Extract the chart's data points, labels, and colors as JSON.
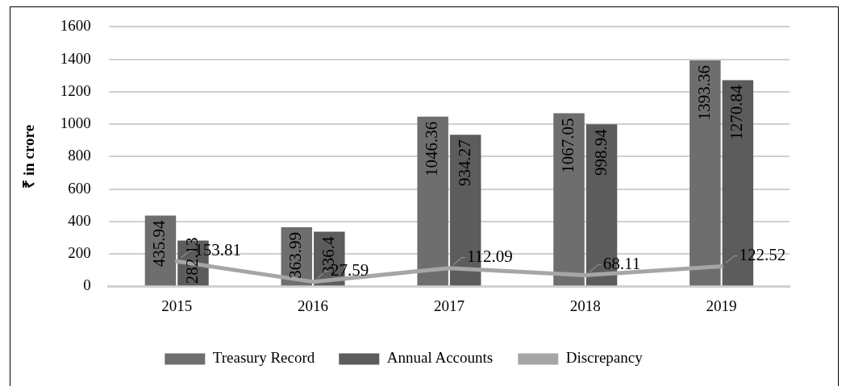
{
  "chart_data": {
    "type": "bar",
    "ylabel": "₹ in crore",
    "categories": [
      "2015",
      "2016",
      "2017",
      "2018",
      "2019"
    ],
    "series": [
      {
        "name": "Treasury Record",
        "color": "#6e6e6e",
        "values": [
          435.94,
          363.99,
          1046.36,
          1067.05,
          1393.36
        ]
      },
      {
        "name": "Annual Accounts",
        "color": "#5c5c5c",
        "values": [
          282.13,
          336.4,
          934.27,
          998.94,
          1270.84
        ]
      },
      {
        "name": "Discrepancy",
        "type": "line",
        "color": "#a6a6a6",
        "values": [
          153.81,
          27.59,
          112.09,
          68.11,
          122.52
        ]
      }
    ],
    "ylim": [
      0,
      1600
    ],
    "yticks": [
      0,
      200,
      400,
      600,
      800,
      1000,
      1200,
      1400,
      1600
    ],
    "grid": "y",
    "legend": "bottom",
    "data_labels": true,
    "marker": "none"
  }
}
